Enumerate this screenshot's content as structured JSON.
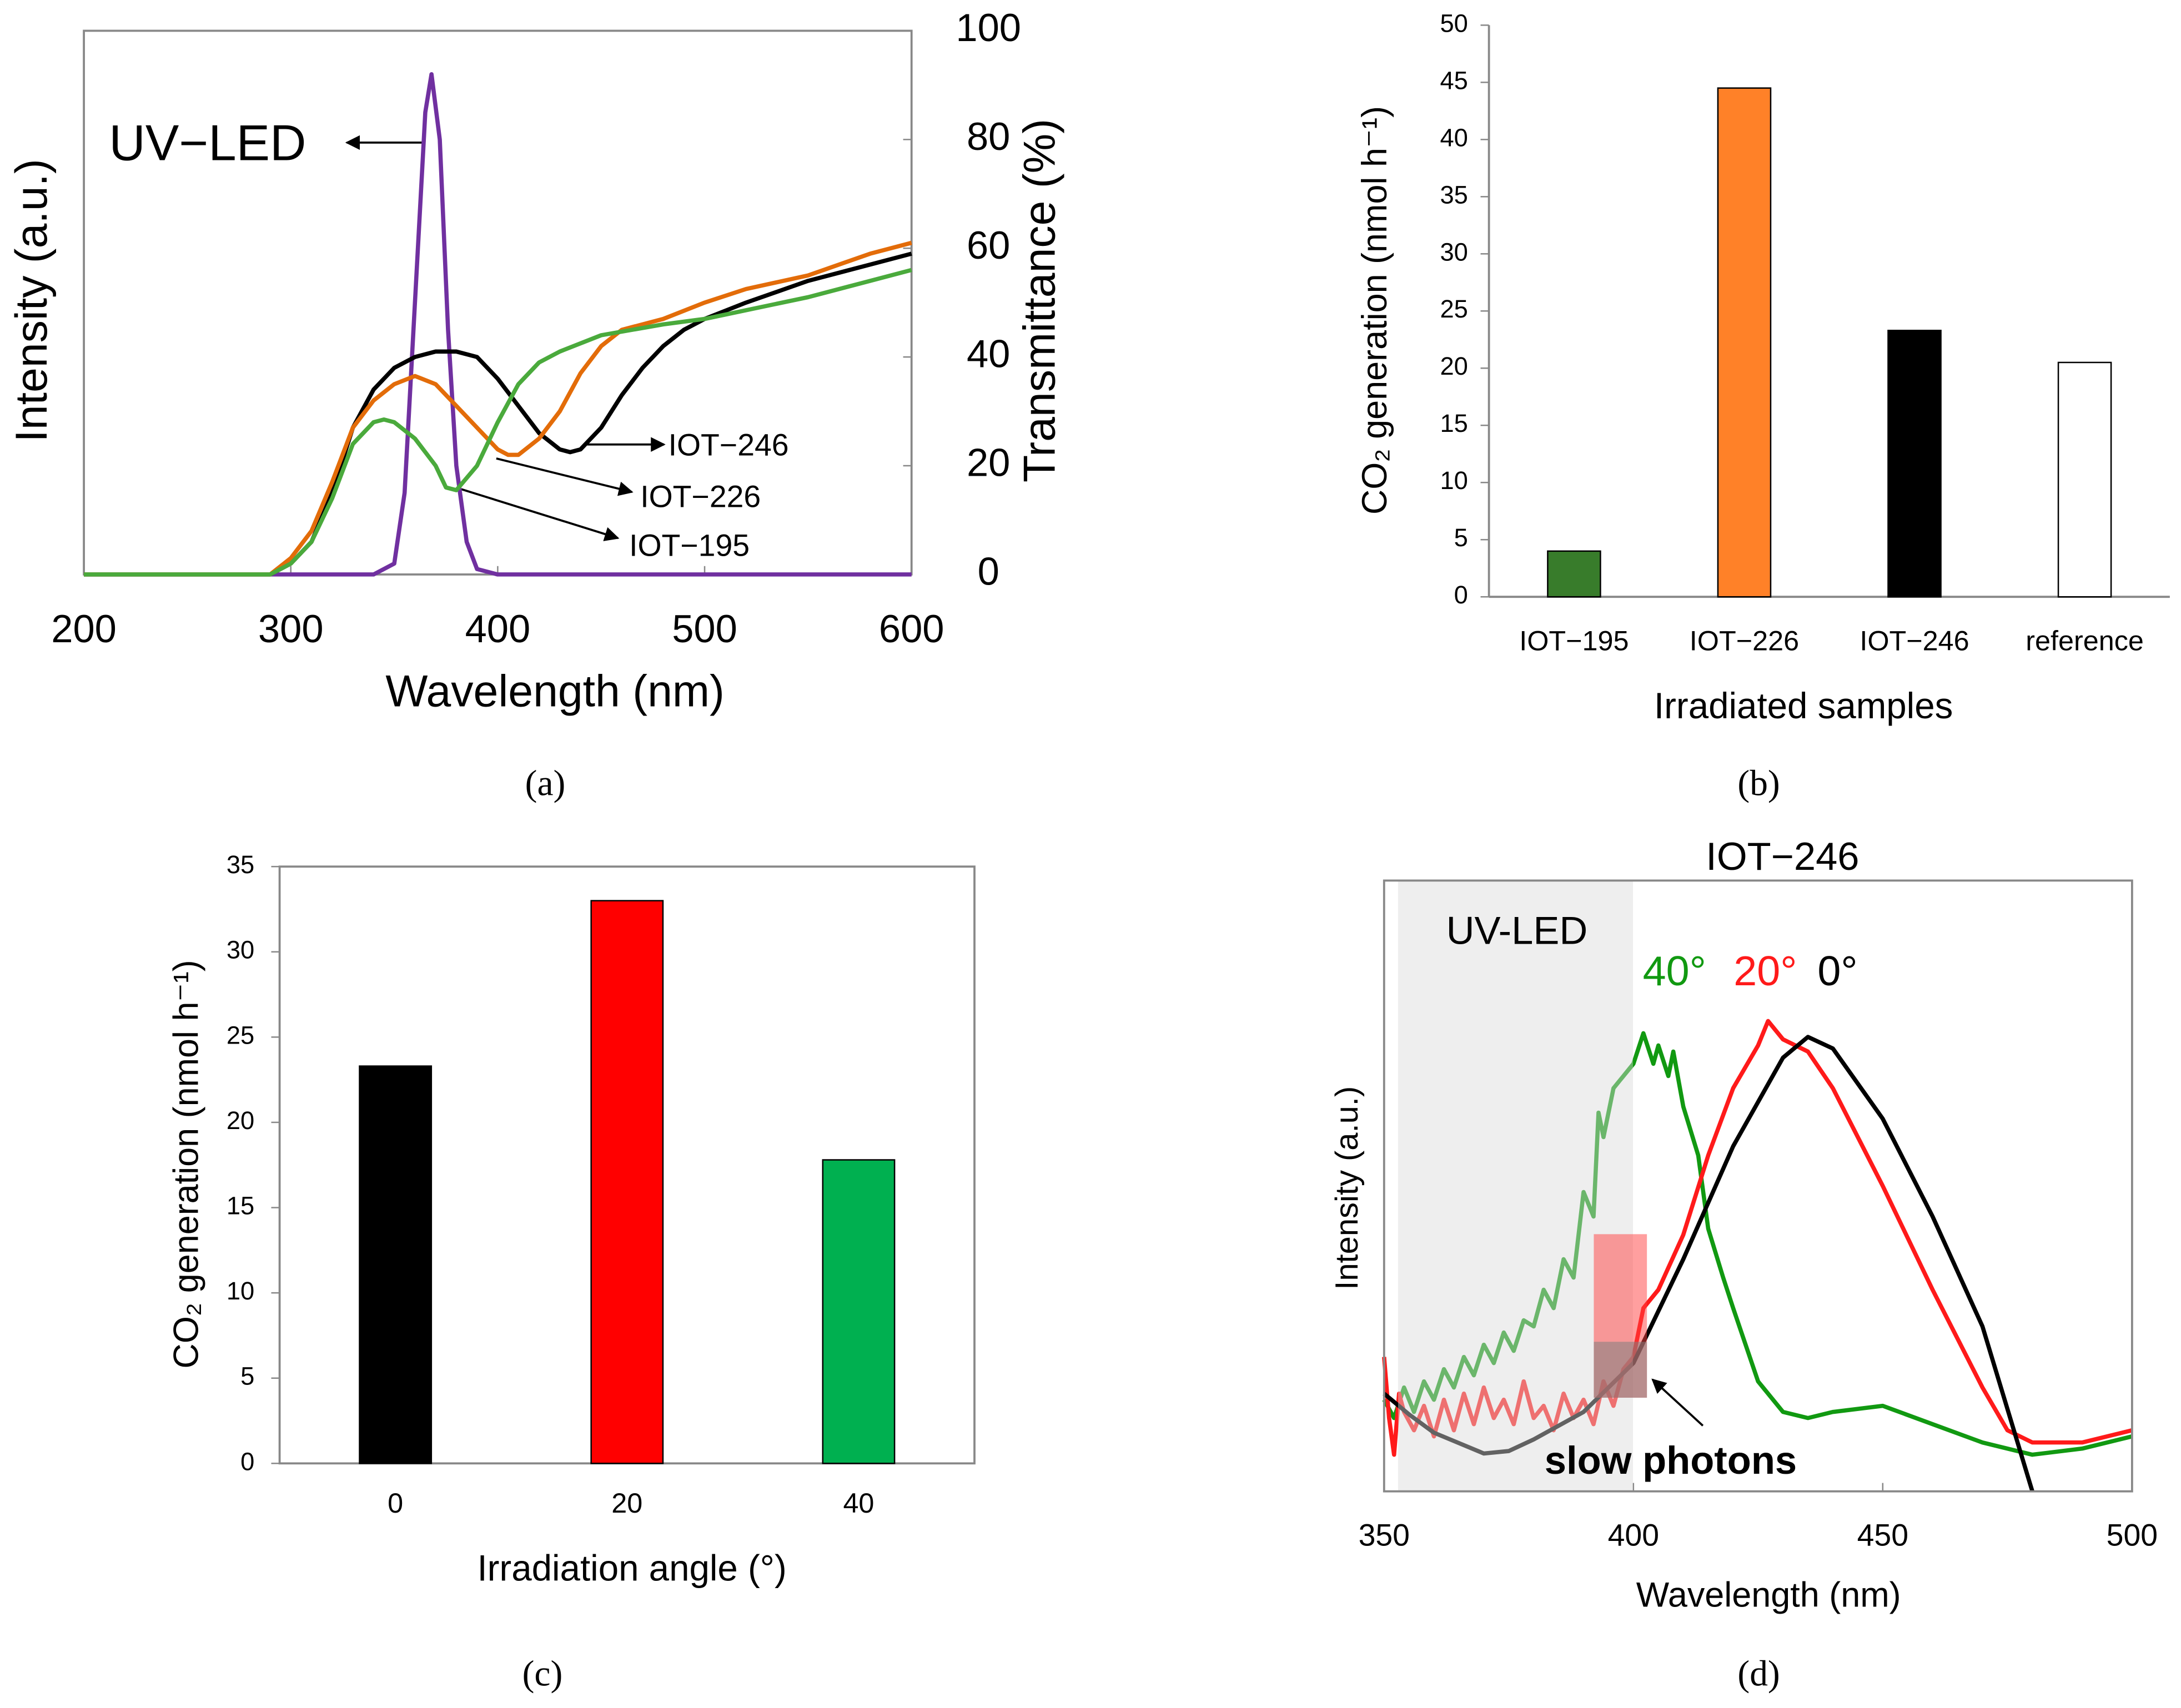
{
  "chart_data": [
    {
      "type": "line",
      "panel_label": "(a)",
      "x_label": "Wavelength (nm)",
      "y_label": "Intensity (a.u.)",
      "y2_label": "Transmittance (%)",
      "xlim": [
        200,
        600
      ],
      "xticks": [
        200,
        300,
        400,
        500,
        600
      ],
      "ylim": [
        0,
        1
      ],
      "y2lim": [
        0,
        100
      ],
      "y2ticks": [
        0,
        20,
        40,
        60,
        80,
        100
      ],
      "series": [
        {
          "name": "UV−LED",
          "color": "#7030a0",
          "axis": "y",
          "x": [
            200,
            340,
            350,
            355,
            360,
            365,
            368,
            372,
            376,
            380,
            385,
            390,
            400,
            600
          ],
          "values": [
            0,
            0,
            0.02,
            0.15,
            0.5,
            0.85,
            0.92,
            0.8,
            0.45,
            0.2,
            0.06,
            0.01,
            0,
            0
          ]
        },
        {
          "name": "IOT−246",
          "color": "#000000",
          "axis": "y2",
          "x": [
            200,
            290,
            300,
            310,
            320,
            330,
            340,
            350,
            360,
            370,
            380,
            390,
            400,
            410,
            420,
            430,
            435,
            440,
            450,
            460,
            470,
            480,
            490,
            500,
            520,
            550,
            580,
            600
          ],
          "values": [
            0,
            0,
            2,
            6,
            15,
            27,
            34,
            38,
            40,
            41,
            41,
            40,
            36,
            31,
            26,
            23,
            22.5,
            23,
            27,
            33,
            38,
            42,
            45,
            47,
            50,
            54,
            57,
            59
          ]
        },
        {
          "name": "IOT−226",
          "color": "#e36c09",
          "axis": "y2",
          "x": [
            200,
            290,
            300,
            310,
            320,
            330,
            340,
            350,
            360,
            370,
            380,
            390,
            400,
            405,
            410,
            420,
            430,
            440,
            450,
            460,
            480,
            500,
            520,
            550,
            580,
            600
          ],
          "values": [
            0,
            0,
            3,
            8,
            17,
            27,
            32,
            35,
            36.5,
            35,
            31,
            27,
            23,
            22,
            22,
            25,
            30,
            37,
            42,
            45,
            47,
            50,
            52.5,
            55,
            59,
            61
          ]
        },
        {
          "name": "IOT−195",
          "color": "#4aaa3c",
          "axis": "y2",
          "x": [
            200,
            290,
            300,
            310,
            320,
            330,
            340,
            345,
            350,
            360,
            370,
            375,
            380,
            390,
            400,
            410,
            420,
            430,
            450,
            480,
            500,
            550,
            600
          ],
          "values": [
            0,
            0,
            2,
            6,
            14,
            24,
            28,
            28.5,
            28,
            25,
            20,
            16,
            15.5,
            20,
            28,
            35,
            39,
            41,
            44,
            46,
            47,
            51,
            56
          ]
        }
      ]
    },
    {
      "type": "bar",
      "panel_label": "(b)",
      "x_label": "Irradiated samples",
      "y_label": "CO₂ generation (nmol h⁻¹)",
      "categories": [
        "IOT−195",
        "IOT−226",
        "IOT−246",
        "reference"
      ],
      "values": [
        4,
        44.5,
        23.3,
        20.5
      ],
      "colors": [
        "#387c2b",
        "#ff8128",
        "#000000",
        "#ffffff"
      ],
      "ylim": [
        0,
        50
      ],
      "yticks": [
        0,
        5,
        10,
        15,
        20,
        25,
        30,
        35,
        40,
        45,
        50
      ]
    },
    {
      "type": "bar",
      "panel_label": "(c)",
      "x_label": "Irradiation angle (°)",
      "y_label": "CO₂ generation (nmol h⁻¹)",
      "categories": [
        "0",
        "20",
        "40"
      ],
      "values": [
        23.3,
        33,
        17.8
      ],
      "colors": [
        "#000000",
        "#ff0000",
        "#00b050"
      ],
      "ylim": [
        0,
        35
      ],
      "yticks": [
        0,
        5,
        10,
        15,
        20,
        25,
        30,
        35
      ]
    },
    {
      "type": "line",
      "panel_label": "(d)",
      "title": "IOT−246",
      "x_label": "Wavelength (nm)",
      "y_label": "Intensity (a.u.)",
      "annotations": [
        "UV-LED",
        "slow photons"
      ],
      "xlim": [
        350,
        500
      ],
      "xticks": [
        350,
        400,
        450,
        500
      ],
      "ylim": [
        0,
        1
      ],
      "series": [
        {
          "name": "40°",
          "color": "#119911",
          "x": [
            350,
            352,
            354,
            356,
            358,
            360,
            362,
            364,
            366,
            368,
            370,
            372,
            374,
            376,
            378,
            380,
            382,
            384,
            386,
            388,
            390,
            392,
            393,
            394,
            396,
            398,
            400,
            402,
            404,
            405,
            407,
            408,
            410,
            413,
            415,
            418,
            420,
            425,
            430,
            435,
            440,
            450,
            460,
            470,
            480,
            490,
            500
          ],
          "values": [
            0.15,
            0.12,
            0.17,
            0.13,
            0.18,
            0.15,
            0.2,
            0.17,
            0.22,
            0.19,
            0.24,
            0.21,
            0.26,
            0.23,
            0.28,
            0.27,
            0.33,
            0.3,
            0.38,
            0.35,
            0.49,
            0.45,
            0.62,
            0.58,
            0.66,
            0.68,
            0.7,
            0.75,
            0.7,
            0.73,
            0.68,
            0.72,
            0.63,
            0.55,
            0.43,
            0.35,
            0.3,
            0.18,
            0.13,
            0.12,
            0.13,
            0.14,
            0.11,
            0.08,
            0.06,
            0.07,
            0.09
          ]
        },
        {
          "name": "20°",
          "color": "#ff1a1a",
          "x": [
            350,
            351,
            352,
            353,
            354,
            356,
            358,
            360,
            362,
            364,
            366,
            368,
            370,
            372,
            374,
            376,
            378,
            380,
            382,
            384,
            386,
            388,
            390,
            392,
            394,
            396,
            398,
            400,
            402,
            405,
            410,
            415,
            420,
            425,
            427,
            430,
            435,
            440,
            450,
            460,
            465,
            470,
            475,
            480,
            490,
            500
          ],
          "values": [
            0.22,
            0.12,
            0.06,
            0.16,
            0.13,
            0.1,
            0.14,
            0.09,
            0.15,
            0.1,
            0.16,
            0.11,
            0.17,
            0.12,
            0.15,
            0.11,
            0.18,
            0.12,
            0.14,
            0.1,
            0.16,
            0.12,
            0.15,
            0.11,
            0.18,
            0.14,
            0.2,
            0.22,
            0.3,
            0.33,
            0.42,
            0.55,
            0.66,
            0.73,
            0.77,
            0.74,
            0.72,
            0.66,
            0.5,
            0.33,
            0.25,
            0.17,
            0.1,
            0.08,
            0.08,
            0.1
          ]
        },
        {
          "name": "0°",
          "color": "#000000",
          "x": [
            350,
            355,
            360,
            370,
            375,
            380,
            390,
            400,
            410,
            420,
            430,
            435,
            440,
            450,
            460,
            470,
            480
          ],
          "values": [
            0.16,
            0.126,
            0.096,
            0.062,
            0.066,
            0.085,
            0.13,
            0.21,
            0.38,
            0.565,
            0.71,
            0.744,
            0.725,
            0.61,
            0.45,
            0.27,
            0
          ]
        }
      ]
    }
  ]
}
